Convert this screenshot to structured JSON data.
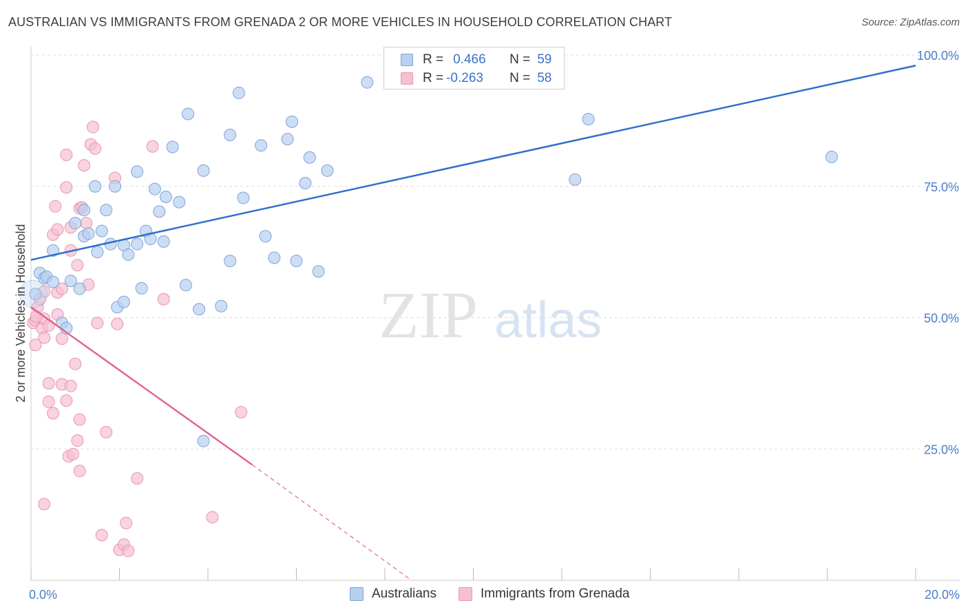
{
  "title": "AUSTRALIAN VS IMMIGRANTS FROM GRENADA 2 OR MORE VEHICLES IN HOUSEHOLD CORRELATION CHART",
  "source": "Source: ZipAtlas.com",
  "watermark": {
    "zip": "ZIP",
    "atlas": "atlas"
  },
  "legend": {
    "series": [
      {
        "r_label": "R =",
        "r_value": "0.466",
        "n_label": "N =",
        "n_value": "59"
      },
      {
        "r_label": "R =",
        "r_value": "-0.263",
        "n_label": "N =",
        "n_value": "58"
      }
    ]
  },
  "bottom_legend": [
    "Australians",
    "Immigrants from Grenada"
  ],
  "colors": {
    "blue_fill": "#b8d0f0",
    "blue_stroke": "#7da3d9",
    "blue_line": "#2f6fcc",
    "pink_fill": "#f7c0d1",
    "pink_stroke": "#e895b0",
    "pink_line": "#e3648f",
    "grid": "#dddddd",
    "tick_text": "#4a7cc9"
  },
  "chart_data": {
    "type": "scatter",
    "title": "AUSTRALIAN VS IMMIGRANTS FROM GRENADA 2 OR MORE VEHICLES IN HOUSEHOLD CORRELATION CHART",
    "xlabel": "",
    "ylabel": "2 or more Vehicles in Household",
    "xlim": [
      0,
      20
    ],
    "ylim": [
      0,
      100
    ],
    "x_tick_labels": [
      "0.0%",
      "20.0%"
    ],
    "y_ticks": [
      25,
      50,
      75,
      100
    ],
    "y_tick_labels": [
      "25.0%",
      "50.0%",
      "75.0%",
      "100.0%"
    ],
    "grid": true,
    "series": [
      {
        "name": "Australians",
        "r": 0.466,
        "n": 59,
        "trend": {
          "x": [
            0,
            20
          ],
          "y": [
            61.0,
            98.0
          ]
        },
        "points": [
          [
            0.1,
            54.5
          ],
          [
            0.2,
            58.5
          ],
          [
            0.3,
            57.5
          ],
          [
            0.35,
            57.8
          ],
          [
            0.5,
            56.8
          ],
          [
            0.5,
            62.8
          ],
          [
            0.7,
            49.0
          ],
          [
            0.8,
            48.0
          ],
          [
            0.9,
            57.0
          ],
          [
            1.0,
            68.0
          ],
          [
            1.1,
            55.5
          ],
          [
            1.2,
            65.5
          ],
          [
            1.2,
            70.5
          ],
          [
            1.3,
            66.0
          ],
          [
            1.45,
            75.0
          ],
          [
            1.5,
            62.5
          ],
          [
            1.6,
            66.5
          ],
          [
            1.7,
            70.5
          ],
          [
            1.9,
            75.0
          ],
          [
            1.95,
            52.0
          ],
          [
            2.1,
            53.0
          ],
          [
            2.1,
            63.8
          ],
          [
            2.2,
            62.0
          ],
          [
            2.4,
            64.0
          ],
          [
            2.4,
            77.8
          ],
          [
            2.5,
            55.6
          ],
          [
            2.6,
            66.5
          ],
          [
            2.7,
            65.0
          ],
          [
            2.8,
            74.5
          ],
          [
            2.9,
            70.2
          ],
          [
            3.0,
            64.5
          ],
          [
            3.05,
            73.0
          ],
          [
            3.2,
            82.5
          ],
          [
            3.35,
            72.0
          ],
          [
            3.5,
            56.2
          ],
          [
            3.55,
            88.8
          ],
          [
            3.8,
            51.6
          ],
          [
            3.9,
            78.0
          ],
          [
            4.3,
            52.2
          ],
          [
            4.5,
            84.8
          ],
          [
            4.5,
            60.8
          ],
          [
            4.7,
            92.8
          ],
          [
            4.8,
            72.8
          ],
          [
            5.2,
            82.8
          ],
          [
            5.3,
            65.5
          ],
          [
            5.5,
            61.4
          ],
          [
            5.8,
            84.0
          ],
          [
            5.9,
            87.3
          ],
          [
            6.0,
            60.8
          ],
          [
            6.2,
            75.6
          ],
          [
            6.3,
            80.5
          ],
          [
            6.5,
            58.8
          ],
          [
            6.7,
            78.0
          ],
          [
            7.6,
            94.8
          ],
          [
            12.3,
            76.3
          ],
          [
            12.6,
            87.8
          ],
          [
            18.1,
            80.6
          ],
          [
            3.9,
            26.5
          ],
          [
            1.8,
            64.0
          ]
        ]
      },
      {
        "name": "Immigrants from Grenada",
        "r": -0.263,
        "n": 58,
        "trend": {
          "x": [
            0,
            5.0
          ],
          "y": [
            52.0,
            22.0
          ]
        },
        "trend_dashed": {
          "x": [
            5.0,
            8.6
          ],
          "y": [
            22.0,
            0.0
          ]
        },
        "points": [
          [
            0.05,
            49.0
          ],
          [
            0.1,
            44.8
          ],
          [
            0.1,
            49.5
          ],
          [
            0.15,
            52.0
          ],
          [
            0.2,
            53.5
          ],
          [
            0.25,
            48.0
          ],
          [
            0.3,
            49.8
          ],
          [
            0.3,
            55.0
          ],
          [
            0.3,
            46.2
          ],
          [
            0.3,
            14.5
          ],
          [
            0.4,
            48.5
          ],
          [
            0.4,
            37.5
          ],
          [
            0.4,
            34.0
          ],
          [
            0.5,
            31.8
          ],
          [
            0.5,
            65.8
          ],
          [
            0.55,
            71.2
          ],
          [
            0.6,
            66.8
          ],
          [
            0.6,
            54.8
          ],
          [
            0.6,
            50.6
          ],
          [
            0.7,
            46.0
          ],
          [
            0.7,
            37.3
          ],
          [
            0.7,
            55.5
          ],
          [
            0.8,
            81.0
          ],
          [
            0.8,
            74.8
          ],
          [
            0.8,
            34.2
          ],
          [
            0.85,
            23.6
          ],
          [
            0.9,
            67.2
          ],
          [
            0.9,
            62.8
          ],
          [
            0.9,
            37.0
          ],
          [
            0.95,
            24.0
          ],
          [
            1.0,
            41.2
          ],
          [
            1.05,
            60.0
          ],
          [
            1.05,
            26.6
          ],
          [
            1.1,
            20.8
          ],
          [
            1.1,
            30.6
          ],
          [
            1.1,
            70.8
          ],
          [
            1.15,
            71.0
          ],
          [
            1.2,
            79.0
          ],
          [
            1.25,
            68.0
          ],
          [
            1.3,
            56.3
          ],
          [
            1.35,
            83.0
          ],
          [
            1.4,
            86.3
          ],
          [
            1.45,
            82.2
          ],
          [
            1.5,
            49.0
          ],
          [
            1.6,
            8.6
          ],
          [
            1.7,
            28.2
          ],
          [
            1.9,
            76.6
          ],
          [
            1.95,
            48.8
          ],
          [
            2.0,
            5.8
          ],
          [
            2.1,
            6.8
          ],
          [
            2.15,
            10.9
          ],
          [
            2.2,
            5.6
          ],
          [
            2.4,
            19.4
          ],
          [
            2.75,
            82.6
          ],
          [
            3.0,
            53.5
          ],
          [
            4.1,
            12.0
          ],
          [
            4.75,
            32.0
          ],
          [
            0.12,
            50.2
          ]
        ]
      }
    ]
  }
}
